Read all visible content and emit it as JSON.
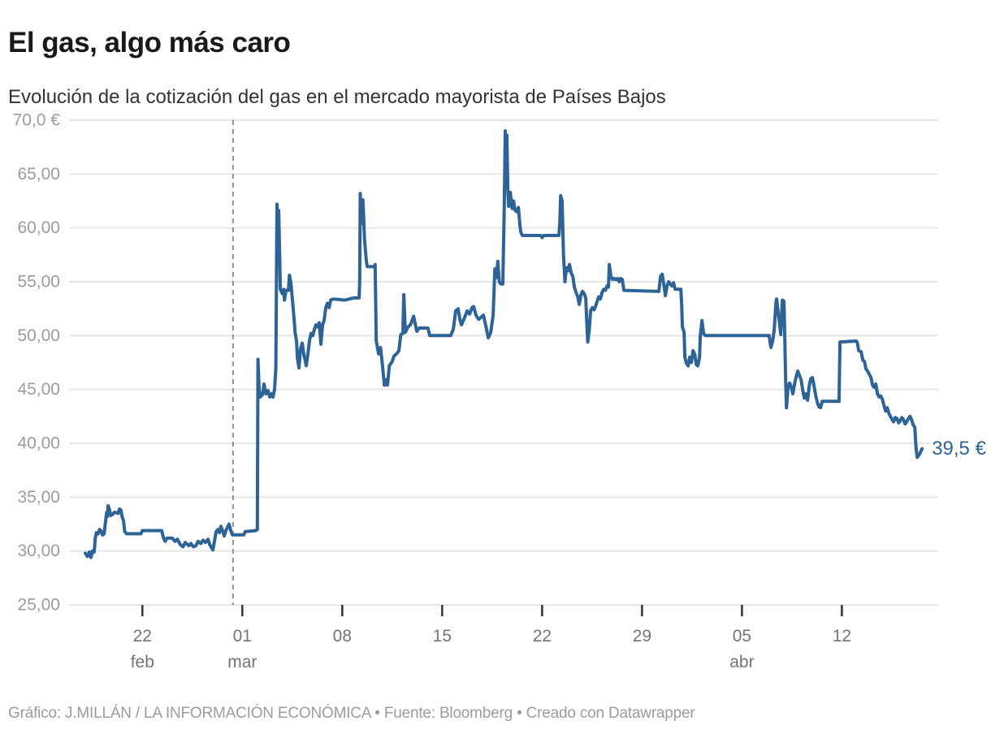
{
  "header": {
    "title": "El gas, algo más caro",
    "subtitle": "Evolución de la cotización del gas en el mercado mayorista de Países Bajos"
  },
  "footer": {
    "text": "Gráfico: J.MILLÁN / LA INFORMACIÓN ECONÓMICA • Fuente: Bloomberg • Creado con Datawrapper"
  },
  "colors": {
    "line": "#2d6396",
    "end_label": "#2d6396",
    "grid": "#e6e6e6",
    "dashed_line": "#8f8f8f",
    "tick_mark": "#333333",
    "x_label": "#747474",
    "y_label": "#9c9c9c",
    "title": "#191919",
    "subtitle": "#333333",
    "footer": "#9c9c9c",
    "background": "#ffffff"
  },
  "chart_data": {
    "type": "line",
    "title": "El gas, algo más caro",
    "subtitle": "Evolución de la cotización del gas en el mercado mayorista de Países Bajos",
    "x_unit": "days since axis start (18 feb)",
    "y_unit": "€",
    "ylim": [
      25,
      70
    ],
    "grid": "horizontal",
    "legend": "none",
    "y_ticks": [
      {
        "value": 70,
        "label": "70,0 €"
      },
      {
        "value": 65,
        "label": "65,00"
      },
      {
        "value": 60,
        "label": "60,00"
      },
      {
        "value": 55,
        "label": "55,00"
      },
      {
        "value": 50,
        "label": "50,00"
      },
      {
        "value": 45,
        "label": "45,00"
      },
      {
        "value": 40,
        "label": "40,00"
      },
      {
        "value": 35,
        "label": "35,00"
      },
      {
        "value": 30,
        "label": "30,00"
      },
      {
        "value": 25,
        "label": "25,00"
      }
    ],
    "x_ticks": [
      {
        "day": 4,
        "label": "22",
        "month": "feb"
      },
      {
        "day": 11,
        "label": "01",
        "month": "mar"
      },
      {
        "day": 18,
        "label": "08",
        "month": ""
      },
      {
        "day": 25,
        "label": "15",
        "month": ""
      },
      {
        "day": 32,
        "label": "22",
        "month": ""
      },
      {
        "day": 39,
        "label": "29",
        "month": ""
      },
      {
        "day": 46,
        "label": "05",
        "month": "abr"
      },
      {
        "day": 53,
        "label": "12",
        "month": ""
      }
    ],
    "dashed_vline_day": 10.35,
    "end_label": "39,5 €",
    "last_value": 39.5,
    "points": [
      [
        0,
        29.8
      ],
      [
        0.15,
        29.5
      ],
      [
        0.28,
        29.9
      ],
      [
        0.4,
        29.4
      ],
      [
        0.5,
        30.0
      ],
      [
        0.62,
        29.9
      ],
      [
        0.7,
        31.2
      ],
      [
        0.78,
        31.7
      ],
      [
        0.9,
        31.6
      ],
      [
        1.0,
        32.0
      ],
      [
        1.1,
        31.9
      ],
      [
        1.2,
        31.5
      ],
      [
        1.32,
        31.6
      ],
      [
        1.45,
        33.1
      ],
      [
        1.5,
        33.6
      ],
      [
        1.55,
        33.2
      ],
      [
        1.6,
        34.2
      ],
      [
        1.7,
        33.8
      ],
      [
        1.78,
        33.3
      ],
      [
        1.9,
        33.4
      ],
      [
        2.05,
        33.6
      ],
      [
        2.3,
        33.5
      ],
      [
        2.4,
        33.9
      ],
      [
        2.5,
        33.8
      ],
      [
        2.58,
        33.2
      ],
      [
        2.68,
        32.8
      ],
      [
        2.76,
        31.8
      ],
      [
        2.9,
        31.6
      ],
      [
        3.9,
        31.6
      ],
      [
        4.0,
        31.9
      ],
      [
        5.35,
        31.9
      ],
      [
        5.48,
        31.2
      ],
      [
        5.6,
        30.9
      ],
      [
        5.72,
        31.2
      ],
      [
        6.1,
        31.2
      ],
      [
        6.28,
        30.9
      ],
      [
        6.45,
        31.1
      ],
      [
        6.65,
        30.6
      ],
      [
        6.85,
        30.4
      ],
      [
        7.0,
        30.8
      ],
      [
        7.25,
        30.5
      ],
      [
        7.4,
        30.7
      ],
      [
        7.57,
        30.4
      ],
      [
        7.75,
        30.5
      ],
      [
        7.9,
        30.9
      ],
      [
        8.1,
        30.7
      ],
      [
        8.25,
        31.0
      ],
      [
        8.42,
        30.8
      ],
      [
        8.6,
        31.1
      ],
      [
        8.72,
        30.6
      ],
      [
        8.85,
        30.3
      ],
      [
        8.94,
        30.1
      ],
      [
        9.05,
        30.9
      ],
      [
        9.16,
        31.8
      ],
      [
        9.3,
        32.0
      ],
      [
        9.4,
        31.7
      ],
      [
        9.5,
        32.3
      ],
      [
        9.62,
        31.9
      ],
      [
        9.73,
        31.4
      ],
      [
        9.85,
        31.9
      ],
      [
        9.96,
        32.2
      ],
      [
        10.07,
        32.5
      ],
      [
        10.19,
        31.9
      ],
      [
        10.3,
        31.5
      ],
      [
        11.1,
        31.5
      ],
      [
        11.2,
        31.8
      ],
      [
        11.95,
        31.9
      ],
      [
        12.05,
        32.0
      ],
      [
        12.1,
        47.8
      ],
      [
        12.18,
        44.8
      ],
      [
        12.25,
        44.3
      ],
      [
        12.4,
        44.5
      ],
      [
        12.52,
        45.5
      ],
      [
        12.65,
        44.6
      ],
      [
        12.8,
        44.9
      ],
      [
        12.92,
        44.3
      ],
      [
        13.05,
        44.6
      ],
      [
        13.15,
        44.3
      ],
      [
        13.26,
        45.0
      ],
      [
        13.35,
        47.0
      ],
      [
        13.43,
        62.2
      ],
      [
        13.5,
        60.5
      ],
      [
        13.55,
        61.6
      ],
      [
        13.6,
        58.5
      ],
      [
        13.66,
        54.3
      ],
      [
        13.8,
        53.9
      ],
      [
        13.9,
        54.3
      ],
      [
        13.95,
        53.3
      ],
      [
        14.06,
        54.2
      ],
      [
        14.23,
        54.2
      ],
      [
        14.3,
        55.6
      ],
      [
        14.4,
        54.9
      ],
      [
        14.5,
        53.5
      ],
      [
        14.63,
        51.5
      ],
      [
        14.7,
        50.3
      ],
      [
        14.8,
        49.5
      ],
      [
        14.86,
        47.9
      ],
      [
        14.97,
        47.0
      ],
      [
        15.08,
        48.8
      ],
      [
        15.2,
        49.3
      ],
      [
        15.31,
        48.2
      ],
      [
        15.42,
        47.6
      ],
      [
        15.48,
        47.2
      ],
      [
        15.6,
        48.4
      ],
      [
        15.71,
        49.6
      ],
      [
        15.82,
        50.2
      ],
      [
        15.94,
        50.0
      ],
      [
        16.05,
        50.6
      ],
      [
        16.16,
        51.0
      ],
      [
        16.28,
        50.8
      ],
      [
        16.39,
        51.2
      ],
      [
        16.51,
        49.2
      ],
      [
        16.62,
        51.0
      ],
      [
        16.73,
        51.4
      ],
      [
        16.85,
        52.6
      ],
      [
        16.96,
        53.0
      ],
      [
        17.08,
        52.6
      ],
      [
        17.19,
        53.3
      ],
      [
        17.36,
        53.4
      ],
      [
        18.2,
        53.3
      ],
      [
        18.8,
        53.5
      ],
      [
        19.18,
        53.5
      ],
      [
        19.22,
        55.0
      ],
      [
        19.26,
        63.2
      ],
      [
        19.32,
        60.4
      ],
      [
        19.45,
        62.6
      ],
      [
        19.56,
        59.0
      ],
      [
        19.68,
        57.0
      ],
      [
        19.75,
        56.4
      ],
      [
        20.25,
        56.4
      ],
      [
        20.3,
        56.6
      ],
      [
        20.38,
        49.5
      ],
      [
        20.55,
        48.3
      ],
      [
        20.68,
        48.9
      ],
      [
        20.8,
        47.5
      ],
      [
        20.95,
        45.4
      ],
      [
        21.05,
        45.9
      ],
      [
        21.17,
        45.4
      ],
      [
        21.3,
        47.2
      ],
      [
        21.5,
        47.6
      ],
      [
        21.63,
        48.1
      ],
      [
        21.8,
        48.3
      ],
      [
        21.97,
        48.6
      ],
      [
        22.1,
        50.1
      ],
      [
        22.25,
        50.2
      ],
      [
        22.31,
        53.8
      ],
      [
        22.42,
        50.3
      ],
      [
        22.6,
        50.8
      ],
      [
        22.77,
        51.0
      ],
      [
        23.0,
        51.8
      ],
      [
        23.22,
        50.4
      ],
      [
        23.4,
        50.7
      ],
      [
        24.0,
        50.7
      ],
      [
        24.13,
        50.0
      ],
      [
        25.6,
        50.0
      ],
      [
        25.78,
        50.6
      ],
      [
        25.95,
        52.3
      ],
      [
        26.12,
        52.5
      ],
      [
        26.24,
        51.5
      ],
      [
        26.35,
        51.0
      ],
      [
        26.58,
        51.7
      ],
      [
        26.75,
        52.3
      ],
      [
        26.92,
        52.0
      ],
      [
        27.09,
        52.6
      ],
      [
        27.2,
        52.7
      ],
      [
        27.37,
        51.9
      ],
      [
        27.55,
        51.5
      ],
      [
        27.72,
        51.7
      ],
      [
        27.89,
        51.9
      ],
      [
        28.06,
        50.9
      ],
      [
        28.23,
        49.8
      ],
      [
        28.4,
        50.3
      ],
      [
        28.57,
        51.9
      ],
      [
        28.69,
        56.2
      ],
      [
        28.8,
        55.4
      ],
      [
        28.9,
        56.9
      ],
      [
        29.0,
        55.0
      ],
      [
        29.1,
        54.8
      ],
      [
        29.25,
        54.8
      ],
      [
        29.35,
        62.0
      ],
      [
        29.42,
        69.0
      ],
      [
        29.48,
        66.5
      ],
      [
        29.53,
        68.6
      ],
      [
        29.6,
        63.5
      ],
      [
        29.66,
        62.0
      ],
      [
        29.77,
        63.3
      ],
      [
        29.9,
        61.8
      ],
      [
        30.0,
        62.5
      ],
      [
        30.11,
        61.6
      ],
      [
        30.25,
        61.5
      ],
      [
        30.34,
        61.9
      ],
      [
        30.45,
        60.2
      ],
      [
        30.51,
        59.6
      ],
      [
        30.62,
        59.3
      ],
      [
        31.9,
        59.3
      ],
      [
        32.0,
        59.1
      ],
      [
        32.1,
        59.3
      ],
      [
        33.18,
        59.3
      ],
      [
        33.24,
        60.5
      ],
      [
        33.3,
        63.0
      ],
      [
        33.4,
        62.5
      ],
      [
        33.5,
        57.5
      ],
      [
        33.6,
        55.0
      ],
      [
        33.7,
        56.3
      ],
      [
        33.8,
        56.0
      ],
      [
        33.92,
        56.6
      ],
      [
        34.04,
        55.8
      ],
      [
        34.15,
        55.5
      ],
      [
        34.26,
        54.5
      ],
      [
        34.38,
        54.0
      ],
      [
        34.5,
        53.6
      ],
      [
        34.6,
        52.9
      ],
      [
        34.72,
        53.8
      ],
      [
        34.83,
        54.1
      ],
      [
        34.95,
        53.9
      ],
      [
        35.06,
        53.5
      ],
      [
        35.12,
        51.5
      ],
      [
        35.2,
        49.4
      ],
      [
        35.3,
        50.5
      ],
      [
        35.4,
        52.3
      ],
      [
        35.52,
        52.6
      ],
      [
        35.63,
        52.4
      ],
      [
        35.74,
        52.7
      ],
      [
        35.86,
        53.2
      ],
      [
        35.97,
        53.6
      ],
      [
        36.08,
        53.4
      ],
      [
        36.2,
        54.0
      ],
      [
        36.31,
        54.3
      ],
      [
        36.43,
        54.2
      ],
      [
        36.54,
        54.6
      ],
      [
        36.65,
        54.5
      ],
      [
        36.71,
        56.6
      ],
      [
        36.82,
        55.5
      ],
      [
        36.94,
        55.2
      ],
      [
        37.05,
        55.3
      ],
      [
        37.17,
        55.2
      ],
      [
        37.28,
        55.3
      ],
      [
        37.4,
        55.0
      ],
      [
        37.51,
        55.3
      ],
      [
        37.62,
        55.2
      ],
      [
        37.73,
        54.2
      ],
      [
        40.18,
        54.1
      ],
      [
        40.3,
        55.5
      ],
      [
        40.41,
        55.7
      ],
      [
        40.52,
        54.8
      ],
      [
        40.64,
        53.7
      ],
      [
        40.75,
        54.6
      ],
      [
        40.87,
        55.0
      ],
      [
        40.98,
        54.8
      ],
      [
        41.09,
        54.6
      ],
      [
        41.21,
        54.9
      ],
      [
        41.32,
        54.3
      ],
      [
        41.72,
        54.3
      ],
      [
        41.78,
        52.8
      ],
      [
        41.83,
        50.8
      ],
      [
        41.95,
        50.3
      ],
      [
        42.0,
        48.0
      ],
      [
        42.12,
        47.4
      ],
      [
        42.23,
        47.2
      ],
      [
        42.34,
        48.0
      ],
      [
        42.46,
        47.5
      ],
      [
        42.57,
        48.6
      ],
      [
        42.69,
        48.3
      ],
      [
        42.8,
        47.3
      ],
      [
        42.91,
        47.2
      ],
      [
        43.03,
        48.0
      ],
      [
        43.08,
        50.0
      ],
      [
        43.2,
        51.4
      ],
      [
        43.31,
        50.2
      ],
      [
        43.42,
        50.0
      ],
      [
        47.9,
        50.0
      ],
      [
        48.03,
        48.9
      ],
      [
        48.15,
        49.5
      ],
      [
        48.26,
        50.5
      ],
      [
        48.38,
        53.0
      ],
      [
        48.43,
        53.4
      ],
      [
        48.55,
        52.0
      ],
      [
        48.6,
        51.5
      ],
      [
        48.72,
        50.1
      ],
      [
        48.83,
        53.3
      ],
      [
        48.94,
        53.2
      ],
      [
        49.0,
        50.0
      ],
      [
        49.06,
        45.8
      ],
      [
        49.12,
        43.3
      ],
      [
        49.23,
        45.3
      ],
      [
        49.34,
        45.6
      ],
      [
        49.46,
        45.2
      ],
      [
        49.57,
        44.6
      ],
      [
        49.68,
        45.5
      ],
      [
        49.8,
        46.2
      ],
      [
        49.91,
        46.7
      ],
      [
        50.03,
        46.3
      ],
      [
        50.14,
        45.9
      ],
      [
        50.25,
        45.0
      ],
      [
        50.37,
        44.2
      ],
      [
        50.48,
        44.6
      ],
      [
        50.6,
        44.0
      ],
      [
        50.71,
        45.3
      ],
      [
        50.82,
        46.0
      ],
      [
        50.94,
        46.1
      ],
      [
        51.05,
        45.3
      ],
      [
        51.17,
        44.4
      ],
      [
        51.28,
        43.8
      ],
      [
        51.39,
        43.4
      ],
      [
        51.51,
        43.3
      ],
      [
        51.62,
        43.9
      ],
      [
        52.8,
        43.9
      ],
      [
        52.87,
        49.4
      ],
      [
        54.0,
        49.5
      ],
      [
        54.07,
        49.4
      ],
      [
        54.18,
        48.6
      ],
      [
        54.35,
        48.5
      ],
      [
        54.47,
        47.7
      ],
      [
        54.58,
        47.6
      ],
      [
        54.69,
        46.9
      ],
      [
        54.81,
        46.7
      ],
      [
        54.92,
        46.4
      ],
      [
        55.04,
        46.1
      ],
      [
        55.15,
        45.4
      ],
      [
        55.26,
        45.2
      ],
      [
        55.38,
        45.5
      ],
      [
        55.49,
        44.6
      ],
      [
        55.61,
        44.3
      ],
      [
        55.72,
        44.4
      ],
      [
        55.83,
        44.1
      ],
      [
        55.95,
        43.5
      ],
      [
        56.06,
        43.0
      ],
      [
        56.18,
        43.3
      ],
      [
        56.29,
        42.8
      ],
      [
        56.4,
        42.5
      ],
      [
        56.52,
        42.2
      ],
      [
        56.63,
        42.0
      ],
      [
        56.74,
        42.4
      ],
      [
        56.86,
        42.3
      ],
      [
        56.97,
        41.9
      ],
      [
        57.09,
        42.1
      ],
      [
        57.2,
        42.4
      ],
      [
        57.31,
        42.2
      ],
      [
        57.43,
        41.8
      ],
      [
        57.54,
        42.0
      ],
      [
        57.66,
        42.3
      ],
      [
        57.77,
        42.5
      ],
      [
        57.88,
        42.2
      ],
      [
        58.0,
        41.7
      ],
      [
        58.11,
        41.5
      ],
      [
        58.2,
        39.5
      ],
      [
        58.28,
        38.7
      ],
      [
        58.4,
        38.9
      ],
      [
        58.51,
        39.2
      ],
      [
        58.62,
        39.5
      ]
    ]
  }
}
